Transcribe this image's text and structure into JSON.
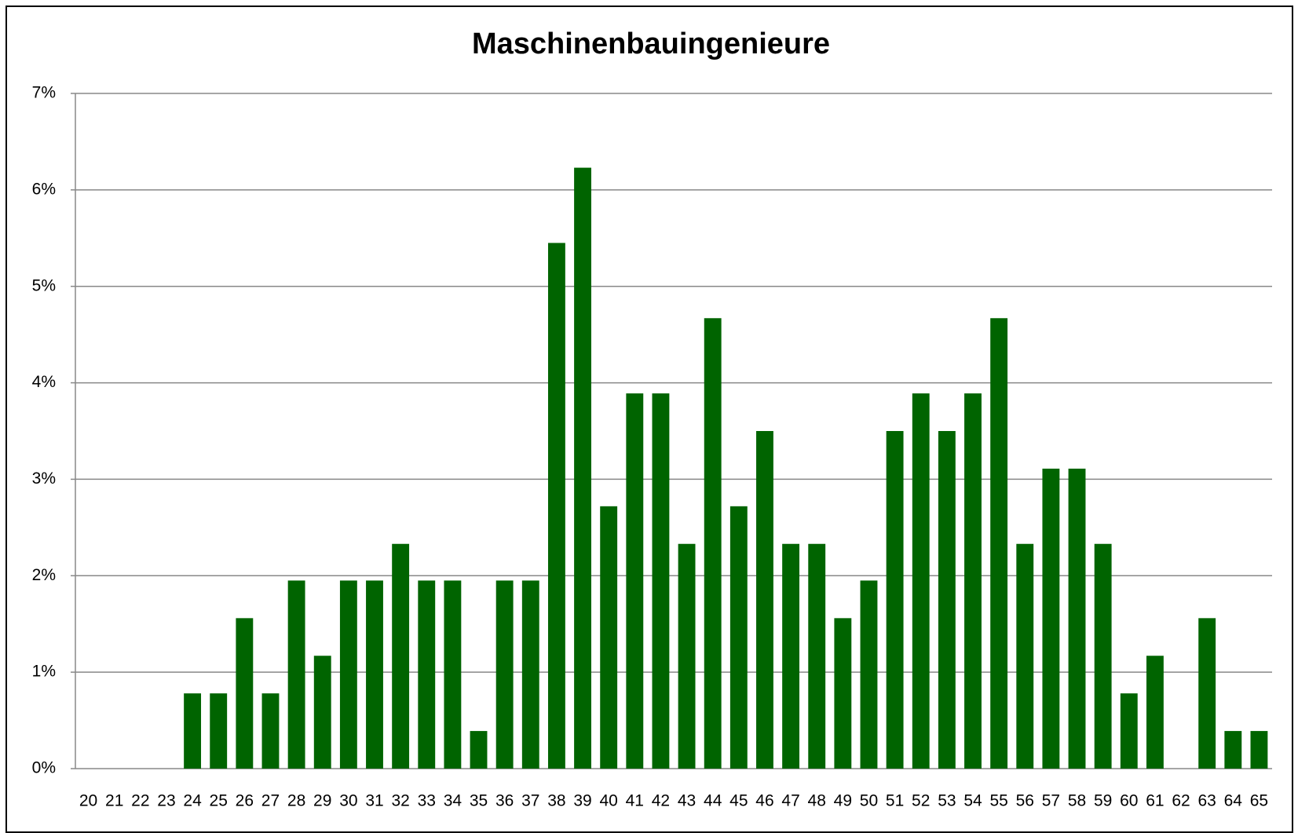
{
  "chart_data": {
    "type": "bar",
    "title": "Maschinenbauingenieure",
    "categories": [
      "20",
      "21",
      "22",
      "23",
      "24",
      "25",
      "26",
      "27",
      "28",
      "29",
      "30",
      "31",
      "32",
      "33",
      "34",
      "35",
      "36",
      "37",
      "38",
      "39",
      "40",
      "41",
      "42",
      "43",
      "44",
      "45",
      "46",
      "47",
      "48",
      "49",
      "50",
      "51",
      "52",
      "53",
      "54",
      "55",
      "56",
      "57",
      "58",
      "59",
      "60",
      "61",
      "62",
      "63",
      "64",
      "65"
    ],
    "values": [
      0,
      0,
      0,
      0,
      0.78,
      0.78,
      1.56,
      0.78,
      1.95,
      1.17,
      1.95,
      1.95,
      2.33,
      1.95,
      1.95,
      0.39,
      1.95,
      1.95,
      5.45,
      6.23,
      2.72,
      3.89,
      3.89,
      2.33,
      4.67,
      2.72,
      3.5,
      2.33,
      2.33,
      1.56,
      1.95,
      3.5,
      3.89,
      3.5,
      3.89,
      4.67,
      2.33,
      3.11,
      3.11,
      2.33,
      0.78,
      1.17,
      0,
      1.56,
      0.39,
      0.39
    ],
    "color": "#006400",
    "ylim": [
      0,
      7
    ],
    "yticks": [
      {
        "value": 0,
        "label": "0%"
      },
      {
        "value": 1,
        "label": "1%"
      },
      {
        "value": 2,
        "label": "2%"
      },
      {
        "value": 3,
        "label": "3%"
      },
      {
        "value": 4,
        "label": "4%"
      },
      {
        "value": 5,
        "label": "5%"
      },
      {
        "value": 6,
        "label": "6%"
      },
      {
        "value": 7,
        "label": "7%"
      }
    ],
    "grid": true
  }
}
